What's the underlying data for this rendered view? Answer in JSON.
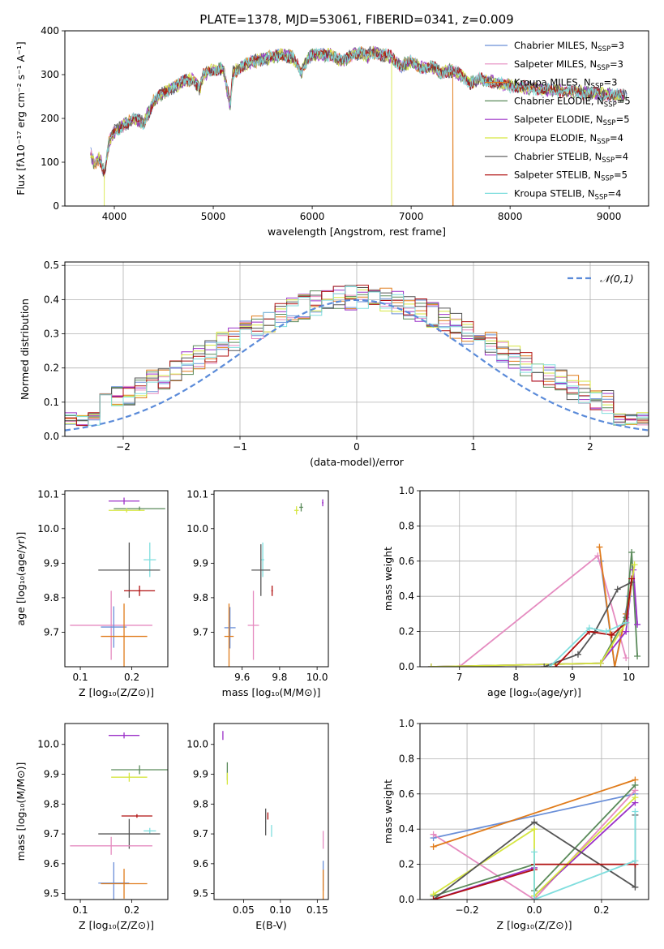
{
  "title": "PLATE=1378, MJD=53061, FIBERID=0341, z=0.009",
  "colors": {
    "Chabrier MILES": "#6a8fd8",
    "Salpeter MILES": "#e58bc0",
    "Kroupa MILES": "#e07b1a",
    "Chabrier ELODIE": "#5a8a5a",
    "Salpeter ELODIE": "#9b30c8",
    "Kroupa ELODIE": "#d6e640",
    "Chabrier STELIB": "#555555",
    "Salpeter STELIB": "#b01010",
    "Kroupa STELIB": "#80dede"
  },
  "chart_data": [
    {
      "id": "spectrum",
      "type": "line",
      "xlabel": "wavelength [Angstrom, rest frame]",
      "ylabel": "Flux [fλ10⁻¹⁷ erg cm⁻² s⁻¹ A⁻¹]",
      "xlim": [
        3500,
        9400
      ],
      "ylim": [
        0,
        400
      ],
      "xticks": [
        "4000",
        "5000",
        "6000",
        "7000",
        "8000",
        "9000"
      ],
      "yticks": [
        "0",
        "100",
        "200",
        "300",
        "400"
      ],
      "legend_position": "upper-right",
      "legend": [
        {
          "label": "Chabrier MILES, N",
          "sub": "SSP",
          "suffix": "=3"
        },
        {
          "label": "Salpeter MILES, N",
          "sub": "SSP",
          "suffix": "=3"
        },
        {
          "label": "Kroupa MILES, N",
          "sub": "SSP",
          "suffix": "=3"
        },
        {
          "label": "Chabrier ELODIE, N",
          "sub": "SSP",
          "suffix": "=5"
        },
        {
          "label": "Salpeter ELODIE, N",
          "sub": "SSP",
          "suffix": "=5"
        },
        {
          "label": "Kroupa ELODIE, N",
          "sub": "SSP",
          "suffix": "=4"
        },
        {
          "label": "Chabrier STELIB, N",
          "sub": "SSP",
          "suffix": "=4"
        },
        {
          "label": "Salpeter STELIB, N",
          "sub": "SSP",
          "suffix": "=5"
        },
        {
          "label": "Kroupa STELIB, N",
          "sub": "SSP",
          "suffix": "=4"
        }
      ],
      "x_range": [
        3760,
        9180
      ],
      "envelope": [
        [
          3760,
          120
        ],
        [
          3800,
          95
        ],
        [
          3850,
          110
        ],
        [
          3900,
          75
        ],
        [
          3950,
          150
        ],
        [
          4000,
          170
        ],
        [
          4100,
          185
        ],
        [
          4200,
          200
        ],
        [
          4300,
          190
        ],
        [
          4400,
          240
        ],
        [
          4500,
          260
        ],
        [
          4600,
          270
        ],
        [
          4700,
          285
        ],
        [
          4800,
          290
        ],
        [
          4860,
          265
        ],
        [
          4900,
          300
        ],
        [
          5000,
          310
        ],
        [
          5100,
          315
        ],
        [
          5170,
          230
        ],
        [
          5200,
          305
        ],
        [
          5300,
          320
        ],
        [
          5400,
          330
        ],
        [
          5500,
          335
        ],
        [
          5600,
          340
        ],
        [
          5700,
          345
        ],
        [
          5800,
          340
        ],
        [
          5890,
          305
        ],
        [
          5950,
          335
        ],
        [
          6000,
          345
        ],
        [
          6200,
          345
        ],
        [
          6300,
          330
        ],
        [
          6400,
          345
        ],
        [
          6500,
          350
        ],
        [
          6560,
          340
        ],
        [
          6600,
          352
        ],
        [
          6700,
          345
        ],
        [
          6800,
          340
        ],
        [
          6900,
          320
        ],
        [
          7000,
          330
        ],
        [
          7100,
          315
        ],
        [
          7200,
          320
        ],
        [
          7300,
          305
        ],
        [
          7400,
          310
        ],
        [
          7500,
          300
        ],
        [
          7600,
          280
        ],
        [
          7700,
          290
        ],
        [
          7800,
          285
        ],
        [
          7900,
          280
        ],
        [
          8000,
          275
        ],
        [
          8200,
          270
        ],
        [
          8400,
          265
        ],
        [
          8600,
          262
        ],
        [
          8800,
          258
        ],
        [
          9000,
          255
        ],
        [
          9180,
          250
        ]
      ],
      "dropouts": [
        {
          "series": "Kroupa ELODIE",
          "wavelength": 3900
        },
        {
          "series": "Kroupa ELODIE",
          "wavelength": 6800
        },
        {
          "series": "Kroupa MILES",
          "wavelength": 7420
        }
      ]
    },
    {
      "id": "residuals",
      "type": "area",
      "xlabel": "(data-model)/error",
      "ylabel": "Normed distribution",
      "xlim": [
        -2.5,
        2.5
      ],
      "ylim": [
        0,
        0.51
      ],
      "xticks": [
        "−2",
        "−1",
        "0",
        "1",
        "2"
      ],
      "yticks": [
        "0.0",
        "0.1",
        "0.2",
        "0.3",
        "0.4",
        "0.5"
      ],
      "grid": true,
      "legend_position": "upper-right",
      "reference_curve": {
        "label": "𝒩(0,1)",
        "color": "#5b8bd9",
        "style": "dashed"
      },
      "bin_width": 0.1
    },
    {
      "id": "age_vs_Z",
      "type": "scatter",
      "xlabel": "Z [log₁₀(Z/Z⊙)]",
      "ylabel": "age  [log₁₀(age/yr)]",
      "xlim": [
        0.07,
        0.27
      ],
      "ylim": [
        9.6,
        10.11
      ],
      "xticks": [
        "0.1",
        "0.2"
      ],
      "yticks": [
        "9.7",
        "9.8",
        "9.9",
        "10.0",
        "10.1"
      ],
      "points": [
        {
          "series": "Salpeter ELODIE",
          "x": 0.185,
          "y": 10.08,
          "xerr": 0.03,
          "yerr": 0.01
        },
        {
          "series": "Chabrier ELODIE",
          "x": 0.215,
          "y": 10.058,
          "xerr": 0.05,
          "yerr": 0.006
        },
        {
          "series": "Kroupa ELODIE",
          "x": 0.19,
          "y": 10.053,
          "xerr": 0.035,
          "yerr": 0.006
        },
        {
          "series": "Kroupa STELIB",
          "x": 0.235,
          "y": 9.91,
          "xerr": 0.012,
          "yerr": 0.05
        },
        {
          "series": "Chabrier STELIB",
          "x": 0.195,
          "y": 9.88,
          "xerr": 0.06,
          "yerr": 0.08
        },
        {
          "series": "Salpeter STELIB",
          "x": 0.215,
          "y": 9.82,
          "xerr": 0.03,
          "yerr": 0.015
        },
        {
          "series": "Salpeter MILES",
          "x": 0.16,
          "y": 9.72,
          "xerr": 0.08,
          "yerr": 0.1
        },
        {
          "series": "Chabrier MILES",
          "x": 0.165,
          "y": 9.715,
          "xerr": 0.025,
          "yerr": 0.06
        },
        {
          "series": "Kroupa MILES",
          "x": 0.185,
          "y": 9.688,
          "xerr": 0.045,
          "yerr": 0.095
        }
      ]
    },
    {
      "id": "age_vs_mass",
      "type": "scatter",
      "xlabel": "mass [log₁₀(M/M⊙)]",
      "ylabel": "",
      "xlim": [
        9.45,
        10.06
      ],
      "ylim": [
        9.6,
        10.11
      ],
      "xticks": [
        "9.6",
        "9.8",
        "10.0"
      ],
      "yticks": [
        "9.7",
        "9.8",
        "9.9",
        "10.0",
        "10.1"
      ],
      "points": [
        {
          "series": "Salpeter ELODIE",
          "x": 10.03,
          "y": 10.075,
          "xerr": 0.004,
          "yerr": 0.01
        },
        {
          "series": "Chabrier ELODIE",
          "x": 9.915,
          "y": 10.062,
          "xerr": 0.01,
          "yerr": 0.012
        },
        {
          "series": "Kroupa ELODIE",
          "x": 9.89,
          "y": 10.053,
          "xerr": 0.012,
          "yerr": 0.012
        },
        {
          "series": "Kroupa STELIB",
          "x": 9.71,
          "y": 9.91,
          "xerr": 0.008,
          "yerr": 0.05
        },
        {
          "series": "Chabrier STELIB",
          "x": 9.7,
          "y": 9.88,
          "xerr": 0.05,
          "yerr": 0.075
        },
        {
          "series": "Salpeter STELIB",
          "x": 9.76,
          "y": 9.82,
          "xerr": 0.004,
          "yerr": 0.015
        },
        {
          "series": "Salpeter MILES",
          "x": 9.66,
          "y": 9.72,
          "xerr": 0.03,
          "yerr": 0.1
        },
        {
          "series": "Chabrier MILES",
          "x": 9.535,
          "y": 9.713,
          "xerr": 0.03,
          "yerr": 0.06
        },
        {
          "series": "Kroupa MILES",
          "x": 9.53,
          "y": 9.688,
          "xerr": 0.025,
          "yerr": 0.095
        }
      ]
    },
    {
      "id": "mass_weight_vs_age",
      "type": "line",
      "xlabel": "age  [log₁₀(age/yr)]",
      "ylabel": "mass weight",
      "xlim": [
        6.3,
        10.35
      ],
      "ylim": [
        0,
        1.0
      ],
      "xticks": [
        "7",
        "8",
        "9",
        "10"
      ],
      "yticks": [
        "0.0",
        "0.2",
        "0.4",
        "0.6",
        "0.8",
        "1.0"
      ],
      "grid": true,
      "series": [
        {
          "name": "Chabrier MILES",
          "x": [
            9.5,
            9.75,
            10.0
          ],
          "y": [
            0.6,
            0.0,
            0.4
          ]
        },
        {
          "name": "Salpeter MILES",
          "x": [
            7.0,
            9.45,
            9.95
          ],
          "y": [
            0.0,
            0.63,
            0.05
          ]
        },
        {
          "name": "Kroupa MILES",
          "x": [
            9.48,
            9.75,
            9.95
          ],
          "y": [
            0.68,
            0.0,
            0.3
          ]
        },
        {
          "name": "Chabrier ELODIE",
          "x": [
            6.5,
            9.5,
            9.95,
            10.05,
            10.15
          ],
          "y": [
            0.0,
            0.02,
            0.28,
            0.65,
            0.06
          ]
        },
        {
          "name": "Salpeter ELODIE",
          "x": [
            6.5,
            9.5,
            9.95,
            10.08,
            10.15
          ],
          "y": [
            0.0,
            0.02,
            0.2,
            0.55,
            0.24
          ]
        },
        {
          "name": "Kroupa ELODIE",
          "x": [
            6.5,
            9.5,
            9.95,
            10.1
          ],
          "y": [
            0.0,
            0.02,
            0.25,
            0.58
          ]
        },
        {
          "name": "Chabrier STELIB",
          "x": [
            8.5,
            9.1,
            9.4,
            9.8,
            10.05
          ],
          "y": [
            0.0,
            0.07,
            0.2,
            0.44,
            0.48
          ]
        },
        {
          "name": "Salpeter STELIB",
          "x": [
            8.7,
            9.3,
            9.7,
            9.95,
            10.05
          ],
          "y": [
            0.0,
            0.2,
            0.18,
            0.25,
            0.5
          ]
        },
        {
          "name": "Kroupa STELIB",
          "x": [
            8.6,
            9.3,
            9.6,
            9.95
          ],
          "y": [
            0.0,
            0.22,
            0.2,
            0.25
          ]
        }
      ]
    },
    {
      "id": "mass_vs_Z",
      "type": "scatter",
      "xlabel": "Z [log₁₀(Z/Z⊙)]",
      "ylabel": "mass [log₁₀(M/M⊙)]",
      "xlim": [
        0.07,
        0.27
      ],
      "ylim": [
        9.48,
        10.07
      ],
      "xticks": [
        "0.1",
        "0.2"
      ],
      "yticks": [
        "9.5",
        "9.6",
        "9.7",
        "9.8",
        "9.9",
        "10.0"
      ],
      "points": [
        {
          "series": "Salpeter ELODIE",
          "x": 0.185,
          "y": 10.03,
          "xerr": 0.03,
          "yerr": 0.01
        },
        {
          "series": "Chabrier ELODIE",
          "x": 0.215,
          "y": 9.915,
          "xerr": 0.055,
          "yerr": 0.015
        },
        {
          "series": "Kroupa ELODIE",
          "x": 0.195,
          "y": 9.89,
          "xerr": 0.035,
          "yerr": 0.015
        },
        {
          "series": "Salpeter STELIB",
          "x": 0.21,
          "y": 9.76,
          "xerr": 0.03,
          "yerr": 0.006
        },
        {
          "series": "Kroupa STELIB",
          "x": 0.235,
          "y": 9.71,
          "xerr": 0.012,
          "yerr": 0.01
        },
        {
          "series": "Chabrier STELIB",
          "x": 0.195,
          "y": 9.7,
          "xerr": 0.06,
          "yerr": 0.05
        },
        {
          "series": "Salpeter MILES",
          "x": 0.16,
          "y": 9.66,
          "xerr": 0.08,
          "yerr": 0.03
        },
        {
          "series": "Chabrier MILES",
          "x": 0.165,
          "y": 9.535,
          "xerr": 0.03,
          "yerr": 0.07
        },
        {
          "series": "Kroupa MILES",
          "x": 0.185,
          "y": 9.533,
          "xerr": 0.045,
          "yerr": 0.05
        }
      ]
    },
    {
      "id": "mass_vs_ebv",
      "type": "scatter",
      "xlabel": "E(B-V)",
      "ylabel": "",
      "xlim": [
        0.01,
        0.165
      ],
      "ylim": [
        9.48,
        10.07
      ],
      "xticks": [
        "0.05",
        "0.10",
        "0.15"
      ],
      "yticks": [
        "9.5",
        "9.6",
        "9.7",
        "9.8",
        "9.9",
        "10.0"
      ],
      "points": [
        {
          "series": "Salpeter ELODIE",
          "x": 0.022,
          "y": 10.03,
          "xerr": 0.0005,
          "yerr": 0.015
        },
        {
          "series": "Chabrier ELODIE",
          "x": 0.028,
          "y": 9.91,
          "xerr": 0.0005,
          "yerr": 0.03
        },
        {
          "series": "Kroupa ELODIE",
          "x": 0.028,
          "y": 9.885,
          "xerr": 0.0005,
          "yerr": 0.02
        },
        {
          "series": "Chabrier STELIB",
          "x": 0.08,
          "y": 9.74,
          "xerr": 0.0005,
          "yerr": 0.045
        },
        {
          "series": "Salpeter STELIB",
          "x": 0.083,
          "y": 9.76,
          "xerr": 0.0005,
          "yerr": 0.012
        },
        {
          "series": "Kroupa STELIB",
          "x": 0.088,
          "y": 9.71,
          "xerr": 0.0005,
          "yerr": 0.02
        },
        {
          "series": "Salpeter MILES",
          "x": 0.158,
          "y": 9.68,
          "xerr": 0.0005,
          "yerr": 0.03
        },
        {
          "series": "Chabrier MILES",
          "x": 0.158,
          "y": 9.56,
          "xerr": 0.0005,
          "yerr": 0.05
        },
        {
          "series": "Kroupa MILES",
          "x": 0.158,
          "y": 9.53,
          "xerr": 0.0005,
          "yerr": 0.05
        }
      ]
    },
    {
      "id": "mass_weight_vs_Z",
      "type": "line",
      "xlabel": "Z [log₁₀(Z/Z⊙)]",
      "ylabel": "mass weight",
      "xlim": [
        -0.34,
        0.34
      ],
      "ylim": [
        0,
        1.0
      ],
      "xticks": [
        "−0.2",
        "0.0",
        "0.2"
      ],
      "yticks": [
        "0.0",
        "0.2",
        "0.4",
        "0.6",
        "0.8",
        "1.0"
      ],
      "grid": true,
      "series": [
        {
          "name": "Chabrier MILES",
          "x": [
            -0.3,
            0.3
          ],
          "y": [
            0.35,
            0.6
          ]
        },
        {
          "name": "Salpeter MILES",
          "x": [
            -0.3,
            0.0,
            0.3
          ],
          "y": [
            0.37,
            0.0,
            0.62
          ]
        },
        {
          "name": "Kroupa MILES",
          "x": [
            -0.3,
            0.3
          ],
          "y": [
            0.3,
            0.68
          ]
        },
        {
          "name": "Chabrier ELODIE",
          "x": [
            -0.3,
            0.0,
            0.0,
            0.3
          ],
          "y": [
            0.02,
            0.2,
            0.05,
            0.65
          ]
        },
        {
          "name": "Salpeter ELODIE",
          "x": [
            -0.3,
            0.0,
            0.0,
            0.3
          ],
          "y": [
            0.0,
            0.18,
            0.02,
            0.55
          ]
        },
        {
          "name": "Kroupa ELODIE",
          "x": [
            -0.3,
            0.0,
            0.0,
            0.3
          ],
          "y": [
            0.03,
            0.4,
            0.02,
            0.58
          ]
        },
        {
          "name": "Chabrier STELIB",
          "x": [
            -0.3,
            0.0,
            0.3,
            0.3
          ],
          "y": [
            0.0,
            0.44,
            0.07,
            0.48
          ]
        },
        {
          "name": "Salpeter STELIB",
          "x": [
            -0.3,
            0.0,
            0.0,
            0.3
          ],
          "y": [
            0.0,
            0.17,
            0.2,
            0.2
          ]
        },
        {
          "name": "Kroupa STELIB",
          "x": [
            0.0,
            0.0,
            0.3,
            0.3
          ],
          "y": [
            0.27,
            0.0,
            0.22,
            0.5
          ]
        }
      ]
    }
  ]
}
